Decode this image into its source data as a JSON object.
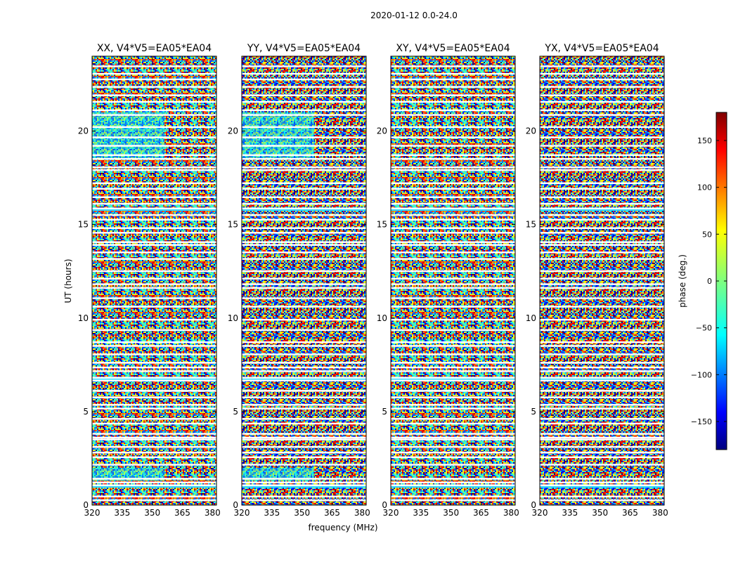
{
  "chart_data": {
    "type": "heatmap",
    "suptitle": "2020-01-12 0.0-24.0",
    "xlabel": "frequency (MHz)",
    "ylabel": "UT (hours)",
    "xlim": [
      320,
      382
    ],
    "ylim": [
      0,
      24
    ],
    "xticks": [
      320,
      335,
      350,
      365,
      380
    ],
    "yticks": [
      0,
      5,
      10,
      15,
      20
    ],
    "colorbar": {
      "label": "phase (deg.)",
      "range": [
        -180,
        180
      ],
      "ticks": [
        150,
        100,
        50,
        0,
        -50,
        -100,
        -150
      ],
      "tick_labels": [
        "150",
        "100",
        "50",
        "0",
        "−50",
        "−100",
        "−150"
      ],
      "colormap": "jet"
    },
    "panels": [
      {
        "title": "XX, V4*V5=EA05*EA04"
      },
      {
        "title": "YY, V4*V5=EA05*EA04"
      },
      {
        "title": "XY, V4*V5=EA05*EA04"
      },
      {
        "title": "YX, V4*V5=EA05*EA04"
      }
    ],
    "flagged_ut_hours": [
      0.25,
      0.45,
      1.05,
      1.2,
      1.4,
      2.15,
      2.55,
      2.8,
      3.1,
      3.5,
      3.6,
      3.8,
      4.35,
      4.6,
      5.15,
      5.35,
      5.75,
      6.1,
      6.65,
      6.8,
      7.15,
      7.35,
      7.6,
      8.05,
      8.5,
      8.7,
      9.35,
      9.9,
      10.6,
      11.05,
      11.6,
      11.8,
      12.1,
      12.5,
      13.15,
      13.5,
      13.9,
      14.05,
      14.55,
      14.8,
      15.25,
      15.5,
      15.85,
      16.1,
      16.45,
      16.9,
      17.2,
      17.9,
      18.05,
      18.5,
      18.7,
      19.2,
      19.65,
      20.2,
      20.85,
      21.1,
      21.55,
      21.9,
      22.35,
      22.75,
      23.05,
      23.45
    ],
    "bright_strip_ut_hours": [
      15.8,
      6.7,
      1.0
    ]
  }
}
